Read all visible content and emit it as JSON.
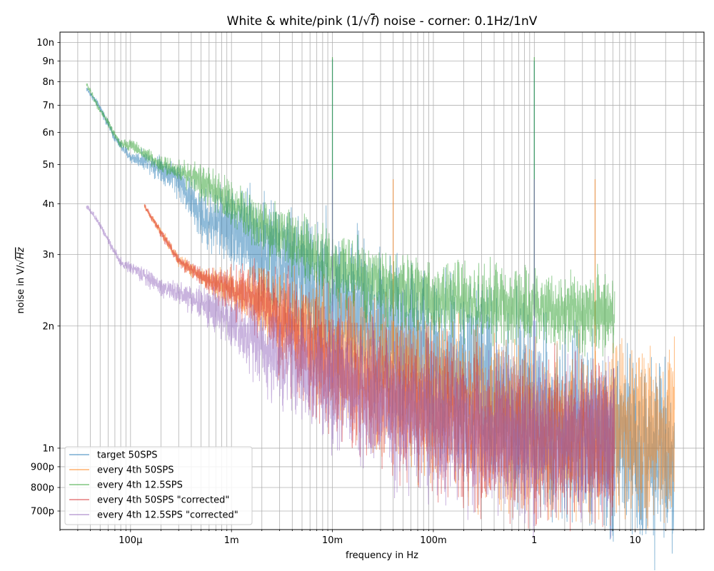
{
  "chart_data": {
    "type": "line",
    "title_main": "White & white/pink (1/",
    "title_sqrt": "√",
    "title_f": "f",
    "title_tail": ") noise - corner: 0.1Hz/1nV",
    "xlabel": "frequency in Hz",
    "ylabel_main": "noise in V/",
    "ylabel_sqrt": "√",
    "ylabel_hz": "Hz",
    "xscale": "log",
    "yscale": "log",
    "xlim": [
      2e-05,
      48
    ],
    "ylim": [
      6.3e-10,
      1.06e-08
    ],
    "grid": "both major and minor",
    "legend_position": "lower-left",
    "x_ticks": [
      {
        "value": 0.0001,
        "label": "100µ"
      },
      {
        "value": 0.001,
        "label": "1m"
      },
      {
        "value": 0.01,
        "label": "10m"
      },
      {
        "value": 0.1,
        "label": "100m"
      },
      {
        "value": 1,
        "label": "1"
      },
      {
        "value": 10,
        "label": "10"
      }
    ],
    "y_ticks": [
      {
        "value": 7e-10,
        "label": "700p"
      },
      {
        "value": 8e-10,
        "label": "800p"
      },
      {
        "value": 9e-10,
        "label": "900p"
      },
      {
        "value": 1e-09,
        "label": "1n"
      },
      {
        "value": 2e-09,
        "label": "2n"
      },
      {
        "value": 3e-09,
        "label": "3n"
      },
      {
        "value": 4e-09,
        "label": "4n"
      },
      {
        "value": 5e-09,
        "label": "5n"
      },
      {
        "value": 6e-09,
        "label": "6n"
      },
      {
        "value": 7e-09,
        "label": "7n"
      },
      {
        "value": 8e-09,
        "label": "8n"
      },
      {
        "value": 9e-09,
        "label": "9n"
      },
      {
        "value": 1e-08,
        "label": "10n"
      }
    ],
    "series": [
      {
        "name": "target 50SPS",
        "color": "#1f77b4",
        "fmin": 3.66e-05,
        "fmax": 24.5,
        "base": [
          [
            3.66e-05,
            7.7e-09
          ],
          [
            5e-05,
            6.9e-09
          ],
          [
            7e-05,
            5.8e-09
          ],
          [
            0.0001,
            5.2e-09
          ],
          [
            0.00015,
            5.1e-09
          ],
          [
            0.0003,
            4.6e-09
          ],
          [
            0.0005,
            3.7e-09
          ],
          [
            0.001,
            3.5e-09
          ],
          [
            0.003,
            2.8e-09
          ],
          [
            0.01,
            2.3e-09
          ],
          [
            0.03,
            1.95e-09
          ],
          [
            0.1,
            1.65e-09
          ],
          [
            0.3,
            1.43e-09
          ],
          [
            1,
            1.22e-09
          ],
          [
            3,
            1.07e-09
          ],
          [
            10,
            9.8e-10
          ],
          [
            24.5,
            9.8e-10
          ]
        ],
        "spread": [
          [
            3.66e-05,
            0.01
          ],
          [
            0.0001,
            0.02
          ],
          [
            0.0003,
            0.06
          ],
          [
            0.001,
            0.14
          ],
          [
            0.003,
            0.22
          ],
          [
            0.01,
            0.26
          ],
          [
            0.1,
            0.3
          ],
          [
            1,
            0.32
          ],
          [
            24.5,
            0.32
          ]
        ],
        "spikes": [
          {
            "f": 0.01,
            "v": 9.1e-09
          },
          {
            "f": 1,
            "v": 9e-09
          }
        ]
      },
      {
        "name": "every 4th 50SPS",
        "color": "#ff7f0e",
        "fmin": 0.000137,
        "fmax": 24.5,
        "base": [
          [
            0.000137,
            3.95e-09
          ],
          [
            0.0002,
            3.4e-09
          ],
          [
            0.0003,
            2.9e-09
          ],
          [
            0.0005,
            2.65e-09
          ],
          [
            0.001,
            2.45e-09
          ],
          [
            0.002,
            2.3e-09
          ],
          [
            0.005,
            1.95e-09
          ],
          [
            0.01,
            1.75e-09
          ],
          [
            0.03,
            1.5e-09
          ],
          [
            0.1,
            1.35e-09
          ],
          [
            0.3,
            1.22e-09
          ],
          [
            1,
            1.12e-09
          ],
          [
            3,
            1.08e-09
          ],
          [
            24.5,
            1.07e-09
          ]
        ],
        "spread": [
          [
            0.000137,
            0.01
          ],
          [
            0.0005,
            0.03
          ],
          [
            0.001,
            0.07
          ],
          [
            0.003,
            0.15
          ],
          [
            0.01,
            0.22
          ],
          [
            0.1,
            0.27
          ],
          [
            1,
            0.29
          ],
          [
            24.5,
            0.29
          ]
        ],
        "spikes": [
          {
            "f": 0.04,
            "v": 4.6e-09
          },
          {
            "f": 4,
            "v": 4.6e-09
          }
        ]
      },
      {
        "name": "every 4th 12.5SPS",
        "color": "#2ca02c",
        "fmin": 3.66e-05,
        "fmax": 6.25,
        "base": [
          [
            3.66e-05,
            7.9e-09
          ],
          [
            5e-05,
            6.8e-09
          ],
          [
            8e-05,
            5.6e-09
          ],
          [
            0.0001,
            5.6e-09
          ],
          [
            0.0002,
            5e-09
          ],
          [
            0.0004,
            4.7e-09
          ],
          [
            0.001,
            4e-09
          ],
          [
            0.003,
            3.3e-09
          ],
          [
            0.01,
            2.8e-09
          ],
          [
            0.03,
            2.5e-09
          ],
          [
            0.1,
            2.35e-09
          ],
          [
            1,
            2.2e-09
          ],
          [
            6.25,
            2.15e-09
          ]
        ],
        "spread": [
          [
            3.66e-05,
            0.01
          ],
          [
            0.0001,
            0.02
          ],
          [
            0.0003,
            0.04
          ],
          [
            0.001,
            0.08
          ],
          [
            0.003,
            0.11
          ],
          [
            0.01,
            0.13
          ],
          [
            1,
            0.13
          ],
          [
            6.25,
            0.13
          ]
        ],
        "spikes": [
          {
            "f": 0.01,
            "v": 9.2e-09
          },
          {
            "f": 1,
            "v": 9.2e-09
          }
        ]
      },
      {
        "name": "every 4th 50SPS \"corrected\"",
        "color": "#d62728",
        "fmin": 0.000137,
        "fmax": 6.25,
        "base": [
          [
            0.000137,
            3.95e-09
          ],
          [
            0.0002,
            3.4e-09
          ],
          [
            0.0003,
            2.9e-09
          ],
          [
            0.0005,
            2.65e-09
          ],
          [
            0.001,
            2.45e-09
          ],
          [
            0.002,
            2.3e-09
          ],
          [
            0.005,
            1.8e-09
          ],
          [
            0.01,
            1.55e-09
          ],
          [
            0.03,
            1.35e-09
          ],
          [
            0.1,
            1.2e-09
          ],
          [
            0.3,
            1.1e-09
          ],
          [
            1,
            1.05e-09
          ],
          [
            6.25,
            1.05e-09
          ]
        ],
        "spread": [
          [
            0.000137,
            0.01
          ],
          [
            0.0005,
            0.03
          ],
          [
            0.001,
            0.08
          ],
          [
            0.003,
            0.16
          ],
          [
            0.01,
            0.22
          ],
          [
            0.1,
            0.26
          ],
          [
            1,
            0.27
          ],
          [
            6.25,
            0.27
          ]
        ],
        "spikes": []
      },
      {
        "name": "every 4th 12.5SPS \"corrected\"",
        "color": "#9467bd",
        "fmin": 3.66e-05,
        "fmax": 6.25,
        "base": [
          [
            3.66e-05,
            3.95e-09
          ],
          [
            5e-05,
            3.55e-09
          ],
          [
            8e-05,
            2.85e-09
          ],
          [
            0.0001,
            2.8e-09
          ],
          [
            0.0002,
            2.5e-09
          ],
          [
            0.0004,
            2.35e-09
          ],
          [
            0.001,
            2.05e-09
          ],
          [
            0.003,
            1.65e-09
          ],
          [
            0.01,
            1.45e-09
          ],
          [
            0.03,
            1.3e-09
          ],
          [
            0.1,
            1.18e-09
          ],
          [
            0.3,
            1.1e-09
          ],
          [
            1,
            1.05e-09
          ],
          [
            6.25,
            1.05e-09
          ]
        ],
        "spread": [
          [
            3.66e-05,
            0.01
          ],
          [
            0.0001,
            0.02
          ],
          [
            0.0003,
            0.04
          ],
          [
            0.001,
            0.09
          ],
          [
            0.003,
            0.16
          ],
          [
            0.01,
            0.22
          ],
          [
            0.1,
            0.26
          ],
          [
            1,
            0.27
          ],
          [
            6.25,
            0.27
          ]
        ],
        "spikes": [
          {
            "f": 0.01,
            "v": 4.6e-09
          },
          {
            "f": 1,
            "v": 4.6e-09
          }
        ]
      }
    ]
  }
}
